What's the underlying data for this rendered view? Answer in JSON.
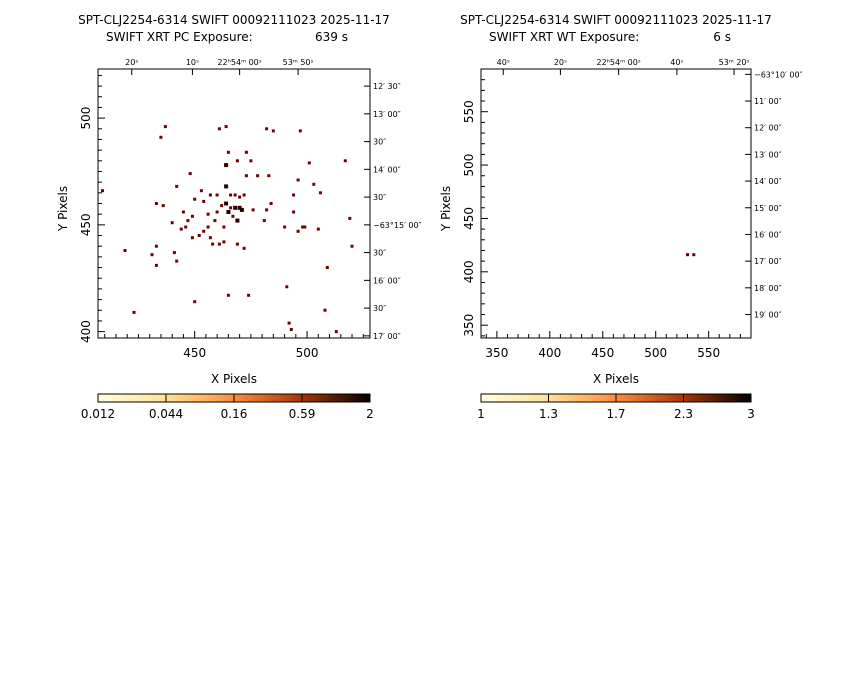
{
  "chart_data": [
    {
      "type": "scatter",
      "title": "SPT-CLJ2254-6314 SWIFT 00092111023 2025-11-17",
      "subtitle_label": "SWIFT XRT PC Exposure:",
      "subtitle_value": "639 s",
      "xlabel": "X Pixels",
      "ylabel": "Y Pixels",
      "xlim": [
        407,
        528
      ],
      "ylim": [
        397,
        523
      ],
      "x_ticks": [
        450,
        500
      ],
      "y_ticks": [
        400,
        450,
        500
      ],
      "top_ra_labels": [
        {
          "x": 422,
          "text": "20ˢ"
        },
        {
          "x": 449,
          "text": "10ˢ"
        },
        {
          "x": 470,
          "text": "22ʰ54ᵐ 00ˢ"
        },
        {
          "x": 496,
          "text": "53ᵐ 50ˢ"
        }
      ],
      "right_dec_labels": [
        {
          "y": 515,
          "text": "12′ 30″"
        },
        {
          "y": 502,
          "text": "13′ 00″"
        },
        {
          "y": 489,
          "text": "30″"
        },
        {
          "y": 476,
          "text": "14′ 00″"
        },
        {
          "y": 463,
          "text": "30″"
        },
        {
          "y": 450,
          "text": "−63°15′ 00″"
        },
        {
          "y": 437,
          "text": "30″"
        },
        {
          "y": 424,
          "text": "16′ 00″"
        },
        {
          "y": 411,
          "text": "30″"
        },
        {
          "y": 398,
          "text": "17′ 00″"
        }
      ],
      "grid": false,
      "points": [
        [
          409,
          466,
          1
        ],
        [
          419,
          438,
          1
        ],
        [
          423,
          409,
          1
        ],
        [
          431,
          436,
          1
        ],
        [
          433,
          431,
          1
        ],
        [
          433,
          440,
          1
        ],
        [
          433,
          460,
          1
        ],
        [
          435,
          491,
          1
        ],
        [
          436,
          459,
          1
        ],
        [
          437,
          496,
          1
        ],
        [
          440,
          451,
          1
        ],
        [
          441,
          437,
          1
        ],
        [
          442,
          433,
          1
        ],
        [
          442,
          468,
          1
        ],
        [
          444,
          448,
          1
        ],
        [
          445,
          456,
          1
        ],
        [
          446,
          449,
          1
        ],
        [
          447,
          452,
          1
        ],
        [
          448,
          474,
          1
        ],
        [
          449,
          444,
          1
        ],
        [
          449,
          454,
          1
        ],
        [
          450,
          414,
          1
        ],
        [
          450,
          462,
          1
        ],
        [
          452,
          445,
          1
        ],
        [
          453,
          466,
          1
        ],
        [
          454,
          447,
          1
        ],
        [
          454,
          461,
          1
        ],
        [
          456,
          449,
          1
        ],
        [
          456,
          455,
          1
        ],
        [
          457,
          444,
          1
        ],
        [
          457,
          464,
          1
        ],
        [
          458,
          441,
          1
        ],
        [
          459,
          452,
          1
        ],
        [
          460,
          456,
          1
        ],
        [
          460,
          464,
          1
        ],
        [
          461,
          441,
          1
        ],
        [
          461,
          495,
          1
        ],
        [
          462,
          459,
          1
        ],
        [
          463,
          442,
          1
        ],
        [
          463,
          449,
          1
        ],
        [
          464,
          478,
          2
        ],
        [
          464,
          496,
          1
        ],
        [
          464,
          460,
          2
        ],
        [
          464,
          468,
          2
        ],
        [
          465,
          417,
          1
        ],
        [
          465,
          456,
          2
        ],
        [
          465,
          484,
          1
        ],
        [
          466,
          458,
          1
        ],
        [
          466,
          464,
          1
        ],
        [
          467,
          454,
          1
        ],
        [
          468,
          464,
          1
        ],
        [
          468,
          458,
          2
        ],
        [
          469,
          441,
          1
        ],
        [
          469,
          452,
          2
        ],
        [
          469,
          480,
          1
        ],
        [
          470,
          458,
          2
        ],
        [
          470,
          463,
          1
        ],
        [
          471,
          457,
          2
        ],
        [
          472,
          439,
          1
        ],
        [
          472,
          464,
          1
        ],
        [
          473,
          473,
          1
        ],
        [
          473,
          484,
          1
        ],
        [
          474,
          417,
          1
        ],
        [
          475,
          480,
          1
        ],
        [
          476,
          457,
          1
        ],
        [
          478,
          473,
          1
        ],
        [
          481,
          452,
          1
        ],
        [
          482,
          457,
          1
        ],
        [
          482,
          495,
          1
        ],
        [
          483,
          473,
          1
        ],
        [
          484,
          460,
          1
        ],
        [
          485,
          494,
          1
        ],
        [
          490,
          449,
          1
        ],
        [
          491,
          421,
          1
        ],
        [
          492,
          404,
          1
        ],
        [
          493,
          401,
          1
        ],
        [
          494,
          464,
          1
        ],
        [
          494,
          456,
          1
        ],
        [
          496,
          471,
          1
        ],
        [
          496,
          447,
          1
        ],
        [
          497,
          494,
          1
        ],
        [
          498,
          449,
          1
        ],
        [
          499,
          449,
          1
        ],
        [
          501,
          479,
          1
        ],
        [
          503,
          469,
          1
        ],
        [
          505,
          448,
          1
        ],
        [
          506,
          465,
          1
        ],
        [
          508,
          410,
          1
        ],
        [
          509,
          430,
          1
        ],
        [
          513,
          400,
          1
        ],
        [
          517,
          480,
          1
        ],
        [
          519,
          453,
          1
        ],
        [
          520,
          440,
          1
        ]
      ],
      "colorbar": {
        "ticks": [
          "0.012",
          "0.044",
          "0.16",
          "0.59",
          "2"
        ],
        "colors": [
          "#ffffe0",
          "#fee391",
          "#fd8d3c",
          "#a63603",
          "#000000"
        ]
      }
    },
    {
      "type": "scatter",
      "title": "SPT-CLJ2254-6314 SWIFT 00092111023 2025-11-17",
      "subtitle_label": "SWIFT XRT WT Exposure:",
      "subtitle_value": "6 s",
      "xlabel": "X Pixels",
      "ylabel": "Y Pixels",
      "xlim": [
        335,
        590
      ],
      "ylim": [
        338,
        590
      ],
      "x_ticks": [
        350,
        400,
        450,
        500,
        550
      ],
      "y_ticks": [
        350,
        400,
        450,
        500,
        550
      ],
      "top_ra_labels": [
        {
          "x": 356,
          "text": "40ˢ"
        },
        {
          "x": 410,
          "text": "20ˢ"
        },
        {
          "x": 465,
          "text": "22ʰ54ᵐ 00ˢ"
        },
        {
          "x": 520,
          "text": "40ˢ"
        },
        {
          "x": 574,
          "text": "53ᵐ 20ˢ"
        }
      ],
      "right_dec_labels": [
        {
          "y": 585,
          "text": "−63°10′ 00″"
        },
        {
          "y": 560,
          "text": "11′ 00″"
        },
        {
          "y": 535,
          "text": "12′ 00″"
        },
        {
          "y": 510,
          "text": "13′ 00″"
        },
        {
          "y": 485,
          "text": "14′ 00″"
        },
        {
          "y": 460,
          "text": "15′ 00″"
        },
        {
          "y": 435,
          "text": "16′ 00″"
        },
        {
          "y": 410,
          "text": "17′ 00″"
        },
        {
          "y": 385,
          "text": "18′ 00″"
        },
        {
          "y": 360,
          "text": "19′ 00″"
        }
      ],
      "grid": false,
      "points": [
        [
          530,
          416,
          1
        ],
        [
          536,
          416,
          1
        ]
      ],
      "colorbar": {
        "ticks": [
          "1",
          "1.3",
          "1.7",
          "2.3",
          "3"
        ],
        "colors": [
          "#ffffe0",
          "#fee391",
          "#fd8d3c",
          "#a63603",
          "#000000"
        ]
      }
    }
  ]
}
